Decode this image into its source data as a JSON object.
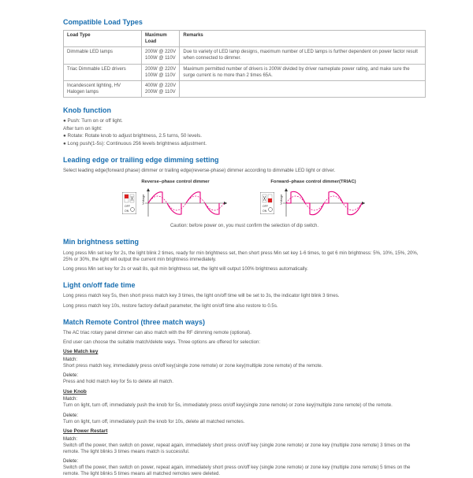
{
  "sections": {
    "compat": {
      "title": "Compatible Load Types",
      "table": {
        "columns": [
          "Load Type",
          "Maximum Load",
          "Remarks"
        ],
        "rows": [
          [
            "Dimmable LED lamps",
            "200W @ 220V\n100W @ 110V",
            "Due to variety of LED lamp designs, maximum number of LED lamps is further dependent on power factor result when connected to dimmer."
          ],
          [
            "Triac Dimmable LED drivers",
            "200W @ 220V\n100W @ 110V",
            "Maximum permitted number of drivers is 200W divided by driver nameplate power rating, and make sure the surge current is no more than 2 times 65A."
          ],
          [
            "Incandescent lighting, HV Halogen lamps",
            "400W @ 220V\n200W @ 110V",
            ""
          ]
        ]
      }
    },
    "knob": {
      "title": "Knob function",
      "items": [
        "● Push: Turn on or off light.",
        "After turn on light:",
        "● Rotate: Rotate knob to adjust brightness, 2.5 turns, 50 levels.",
        "● Long push(1-5s): Continuous 256 levels brightness adjustment."
      ]
    },
    "dimming": {
      "title": "Leading edge or trailing edge dimming setting",
      "intro": "Select leading edge(forward phase) dimmer or trailing edge(reverse-phase) dimmer according to dimmable LED light or driver.",
      "left_title": "Reverse–phase control dimmer",
      "right_title": "Forward–phase control dimmer(TRIAC)",
      "switch_labels": {
        "off": "OFF",
        "on": "ON"
      },
      "axis_label": "Voltage",
      "caution": "Caution: before power on, you must confirm the selection of dip switch.",
      "wave_color": "#e6007e",
      "axis_color": "#333333"
    },
    "minbright": {
      "title": "Min brightness setting",
      "p1": "Long press Min set key for 2s, the light blink 2 times, ready for min brightness set, then short press Min set key 1-6 times, to get 6 min brightness: 5%, 10%, 15%, 20%, 25% or 30%, the light will output the current min brightness immediately.",
      "p2": "Long press Min set key for 2s or wait 8s, quit min brightness set, the light will output 100% brightness automatically."
    },
    "fade": {
      "title": "Light on/off fade time",
      "p1": "Long press match key 5s, then short press match key 3 times, the light on/off time will be set to 3s, the indicator light blink 3 times.",
      "p2": "Long press match key 10s, restore factory default parameter, the light on/off time also restore to 0.5s."
    },
    "match": {
      "title": "Match Remote Control (three match ways)",
      "intro1": "The AC triac rotary panel dimmer can also match with the RF dimming remote (optional).",
      "intro2": "End user can choose the suitable match/delete ways. Three options are offered for selection:",
      "usematch": {
        "head": "Use Match key",
        "m_label": "Match:",
        "m_txt": "Short press match key, immediately press on/off key(single zone remote) or zone key(multiple zone remote) of the remote.",
        "d_label": "Delete:",
        "d_txt": "Press and hold match key for 5s to delete all match."
      },
      "useknob": {
        "head": "Use Knob",
        "m_label": "Match:",
        "m_txt": "Turn on light, turn off, immediately push the knob for 5s, immediately press on/off key(single zone remote) or zone key(multiple zone remote) of the remote.",
        "d_label": "Delete:",
        "d_txt": "Turn on light, turn off, immediately push the knob for 10s, delete all matched remotes."
      },
      "usepower": {
        "head": "Use Power Restart",
        "m_label": "Match:",
        "m_txt": "Switch off the power, then switch on power, repeat again, immediately short press on/off key (single zone remote) or zone key (multiple zone remote) 3 times on the remote. The light blinks 3 times means match is successful.",
        "d_label": "Delete:",
        "d_txt": "Switch off the power, then switch on power, repeat again, immediately short press on/off key (single zone remote) or zone key (multiple zone remote) 5 times on the remote. The light blinks 5 times means all matched remotes were deleted."
      }
    }
  }
}
